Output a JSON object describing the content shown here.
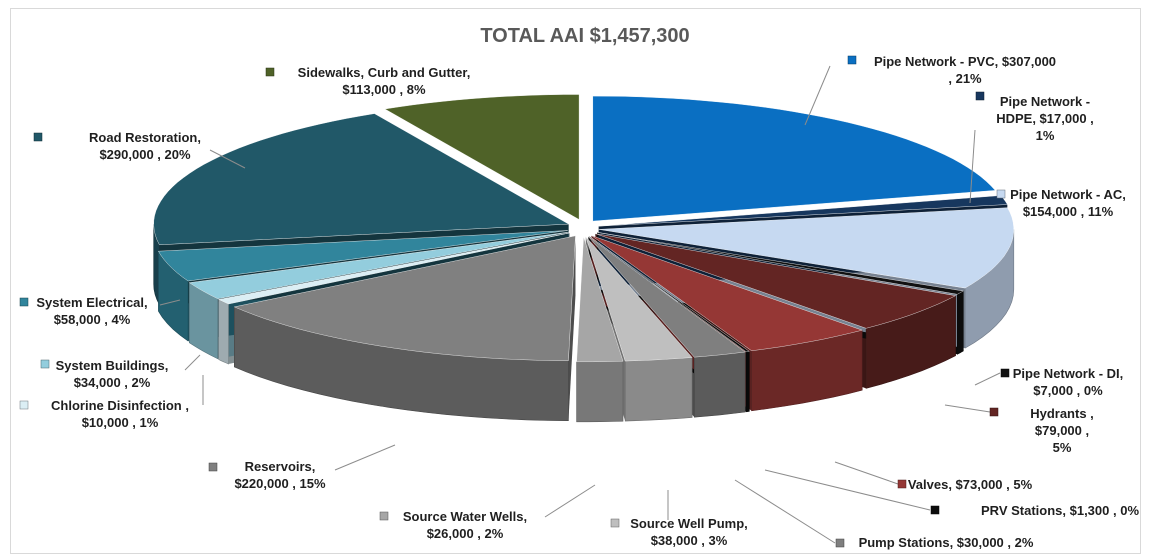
{
  "chart_data": {
    "type": "pie",
    "title": "TOTAL AAI $1,457,300",
    "style": "3d-exploded",
    "slices": [
      {
        "category": "Pipe Network - PVC",
        "value": 307000,
        "value_label": "$307,000",
        "percent_label": "21%",
        "color": "#0a6fc2",
        "label_lines": [
          "Pipe Network - PVC, $307,000",
          ", 21%"
        ]
      },
      {
        "category": "Pipe Network - HDPE",
        "value": 17000,
        "value_label": "$17,000",
        "percent_label": "1%",
        "color": "#17375e",
        "label_lines": [
          "Pipe Network -",
          "HDPE, $17,000 ,",
          "1%"
        ]
      },
      {
        "category": "Pipe Network - AC",
        "value": 154000,
        "value_label": "$154,000",
        "percent_label": "11%",
        "color": "#c6d9f1",
        "label_lines": [
          "Pipe Network - AC,",
          "$154,000 , 11%"
        ]
      },
      {
        "category": "Pipe Network - DI",
        "value": 7000,
        "value_label": "$7,000",
        "percent_label": "0%",
        "color": "#111111",
        "label_lines": [
          "Pipe Network - DI,",
          "$7,000 , 0%"
        ]
      },
      {
        "category": "Hydrants",
        "value": 79000,
        "value_label": "$79,000",
        "percent_label": "5%",
        "color": "#632523",
        "label_lines": [
          "Hydrants ,",
          "$79,000 ,",
          "5%"
        ]
      },
      {
        "category": "Valves",
        "value": 73000,
        "value_label": "$73,000",
        "percent_label": "5%",
        "color": "#953735",
        "label_lines": [
          "Valves, $73,000 , 5%"
        ]
      },
      {
        "category": "PRV Stations",
        "value": 1300,
        "value_label": "$1,300",
        "percent_label": "0%",
        "color": "#0d0d0d",
        "label_lines": [
          "PRV Stations, $1,300 , 0%"
        ]
      },
      {
        "category": "Pump Stations",
        "value": 30000,
        "value_label": "$30,000",
        "percent_label": "2%",
        "color": "#7f7f7f",
        "label_lines": [
          "Pump Stations, $30,000 , 2%"
        ]
      },
      {
        "category": "Source Well Pump",
        "value": 38000,
        "value_label": "$38,000",
        "percent_label": "3%",
        "color": "#bfbfbf",
        "label_lines": [
          "Source Well Pump,",
          "$38,000 , 3%"
        ]
      },
      {
        "category": "Source Water Wells",
        "value": 26000,
        "value_label": "$26,000",
        "percent_label": "2%",
        "color": "#a6a6a6",
        "label_lines": [
          "Source Water Wells,",
          "$26,000 , 2%"
        ]
      },
      {
        "category": "Reservoirs",
        "value": 220000,
        "value_label": "$220,000",
        "percent_label": "15%",
        "color": "#808080",
        "label_lines": [
          "Reservoirs,",
          "$220,000 , 15%"
        ]
      },
      {
        "category": "Chlorine Disinfection",
        "value": 10000,
        "value_label": "$10,000",
        "percent_label": "1%",
        "color": "#dbeef4",
        "label_lines": [
          "Chlorine Disinfection ,",
          "$10,000 , 1%"
        ]
      },
      {
        "category": "System Buildings",
        "value": 34000,
        "value_label": "$34,000",
        "percent_label": "2%",
        "color": "#93cddd",
        "label_lines": [
          "System Buildings,",
          "$34,000 , 2%"
        ]
      },
      {
        "category": "System Electrical",
        "value": 58000,
        "value_label": "$58,000",
        "percent_label": "4%",
        "color": "#31859c",
        "label_lines": [
          "System Electrical,",
          "$58,000 , 4%"
        ]
      },
      {
        "category": "Road Restoration",
        "value": 290000,
        "value_label": "$290,000",
        "percent_label": "20%",
        "color": "#215868",
        "label_lines": [
          "Road Restoration,",
          "$290,000 , 20%"
        ]
      },
      {
        "category": "Sidewalks, Curb and Gutter",
        "value": 113000,
        "value_label": "$113,000",
        "percent_label": "8%",
        "color": "#4f6228",
        "label_lines": [
          "Sidewalks, Curb and Gutter,",
          "$113,000 , 8%"
        ]
      }
    ]
  }
}
